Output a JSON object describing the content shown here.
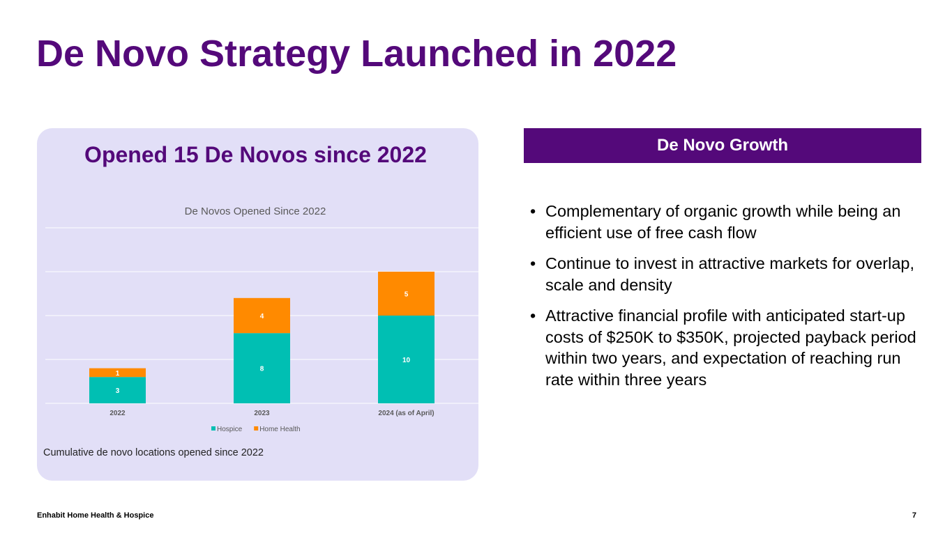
{
  "title": "De Novo Strategy Launched in 2022",
  "panel": {
    "title": "Opened 15 De Novos since 2022",
    "caption": "Cumulative de novo locations opened since 2022"
  },
  "chart_data": {
    "type": "bar",
    "stacked": true,
    "title": "De Novos Opened Since 2022",
    "categories": [
      "2022",
      "2023",
      "2024 (as of April)"
    ],
    "series": [
      {
        "name": "Hospice",
        "values": [
          3,
          8,
          10
        ],
        "color": "#00bfb3"
      },
      {
        "name": "Home Health",
        "values": [
          1,
          4,
          5
        ],
        "color": "#ff8a00"
      }
    ],
    "ylim": [
      0,
      20
    ],
    "grid": true,
    "legend": "bottom",
    "data_labels": true
  },
  "growth": {
    "header": "De Novo Growth",
    "bullet_glyph": "•",
    "bullets": [
      "Complementary of organic growth while being an efficient use of free cash flow",
      "Continue to invest in attractive markets for overlap, scale and density",
      "Attractive financial profile with anticipated start-up costs of $250K to $350K, projected payback period within two years, and expectation of reaching run rate within three years"
    ]
  },
  "footer": {
    "company": "Enhabit Home Health & Hospice",
    "page_number": "7"
  },
  "colors": {
    "brand_purple": "#54097a",
    "panel_bg": "#e2dff7"
  }
}
